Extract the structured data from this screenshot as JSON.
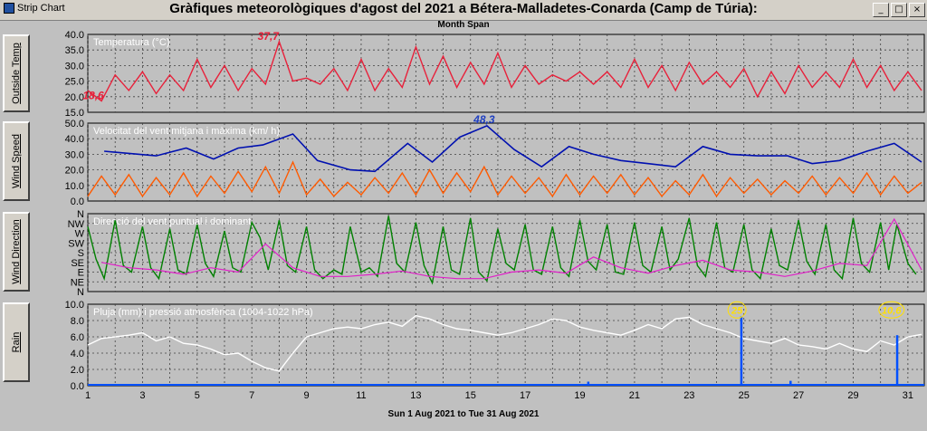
{
  "window": {
    "app_label": "Strip Chart",
    "title": "Gràfiques meteorològiques d'agost del 2021 a Bétera-Malladetes-Conarda (Camp de Túria):",
    "subtitle": "Month Span",
    "footer": "Sun 1 Aug 2021  to  Tue 31 Aug 2021",
    "buttons": {
      "minimize": "_",
      "maximize": "□",
      "close": "×"
    }
  },
  "side_buttons": [
    "Outside Temp",
    "Wind Speed",
    "Wind Direction",
    "Rain"
  ],
  "colors": {
    "temp": "#e8203a",
    "wind_avg": "#ff5a00",
    "wind_max": "#0010b0",
    "dir_point": "#008000",
    "dir_dominant": "#e020c8",
    "rain": "#0050ff",
    "pressure": "#ffffff",
    "rain_marker": "#ffe000",
    "annotation_red": "#e8203a",
    "annotation_blue": "#2040c0",
    "annotation_yellow": "#ffe000"
  },
  "chart_data": [
    {
      "type": "line",
      "panel": "temperature",
      "title": "Temperatura (°C)",
      "ylim": [
        15,
        40
      ],
      "yticks": [
        "40.0",
        "35.0",
        "30.0",
        "25.0",
        "20.0",
        "15.0"
      ],
      "x": [
        1,
        1.5,
        2,
        2.5,
        3,
        3.5,
        4,
        4.5,
        5,
        5.5,
        6,
        6.5,
        7,
        7.5,
        8,
        8.5,
        9,
        9.5,
        10,
        10.5,
        11,
        11.5,
        12,
        12.5,
        13,
        13.5,
        14,
        14.5,
        15,
        15.5,
        16,
        16.5,
        17,
        17.5,
        18,
        18.5,
        19,
        19.5,
        20,
        20.5,
        21,
        21.5,
        22,
        22.5,
        23,
        23.5,
        24,
        24.5,
        25,
        25.5,
        26,
        26.5,
        27,
        27.5,
        28,
        28.5,
        29,
        29.5,
        30,
        30.5,
        31,
        31.5
      ],
      "series": [
        {
          "name": "temperature",
          "values": [
            22,
            18.6,
            27,
            22,
            28,
            21,
            27,
            22,
            32,
            23,
            30,
            22,
            29,
            24,
            37.7,
            25,
            26,
            24,
            29,
            22,
            32,
            22,
            29,
            23,
            36,
            24,
            33,
            23,
            31,
            24,
            34,
            23,
            30,
            24,
            27,
            25,
            28,
            24,
            28,
            23,
            32,
            23,
            30,
            22,
            31,
            24,
            28,
            23,
            29,
            20,
            28,
            21,
            30,
            23,
            28,
            23,
            32,
            23,
            30,
            22,
            28,
            22
          ]
        }
      ],
      "annotations": [
        {
          "text": "37,7",
          "x": 7.6,
          "y": 37.7
        },
        {
          "text": "18,6",
          "x": 1.2,
          "y": 18.6
        }
      ]
    },
    {
      "type": "line",
      "panel": "wind_speed",
      "title": "Velocitat del vent mitjana i màxima (km/ h)",
      "ylim": [
        0,
        50
      ],
      "yticks": [
        "50.0",
        "40.0",
        "30.0",
        "20.0",
        "10.0",
        "0.0"
      ],
      "series": [
        {
          "name": "max",
          "x": [
            1.6,
            3.5,
            4.6,
            5.6,
            6.5,
            7.4,
            8.5,
            9.4,
            10.6,
            11.5,
            12.7,
            13.6,
            14.6,
            15.6,
            16.6,
            17.6,
            18.6,
            19.5,
            20.5,
            21.5,
            22.5,
            23.5,
            24.5,
            25.5,
            26.6,
            27.5,
            28.5,
            29.5,
            30.5,
            31.5
          ],
          "values": [
            32,
            29,
            34,
            27,
            34,
            36,
            43,
            26,
            20,
            19,
            37,
            25,
            41,
            48.3,
            33,
            22,
            35,
            30,
            26,
            24,
            22,
            35,
            30,
            29,
            29,
            24,
            26,
            32,
            37,
            25
          ]
        },
        {
          "name": "average",
          "x": [
            1,
            1.5,
            2,
            2.5,
            3,
            3.5,
            4,
            4.5,
            5,
            5.5,
            6,
            6.5,
            7,
            7.5,
            8,
            8.5,
            9,
            9.5,
            10,
            10.5,
            11,
            11.5,
            12,
            12.5,
            13,
            13.5,
            14,
            14.5,
            15,
            15.5,
            16,
            16.5,
            17,
            17.5,
            18,
            18.5,
            19,
            19.5,
            20,
            20.5,
            21,
            21.5,
            22,
            22.5,
            23,
            23.5,
            24,
            24.5,
            25,
            25.5,
            26,
            26.5,
            27,
            27.5,
            28,
            28.5,
            29,
            29.5,
            30,
            30.5,
            31,
            31.5
          ],
          "values": [
            3,
            16,
            4,
            17,
            3,
            15,
            4,
            18,
            3,
            16,
            5,
            19,
            6,
            22,
            5,
            25,
            4,
            14,
            3,
            12,
            4,
            15,
            5,
            18,
            4,
            20,
            5,
            18,
            6,
            22,
            4,
            16,
            5,
            15,
            3,
            17,
            4,
            16,
            5,
            17,
            4,
            15,
            3,
            13,
            4,
            17,
            3,
            15,
            5,
            14,
            4,
            13,
            5,
            16,
            4,
            15,
            5,
            18,
            4,
            16,
            5,
            12
          ]
        }
      ],
      "annotations": [
        {
          "text": "48,3",
          "x": 15.5,
          "y": 48.3
        }
      ]
    },
    {
      "type": "line",
      "panel": "wind_direction",
      "title": "Direcció del vent puntual i dominant",
      "ylim": [
        0,
        360
      ],
      "yticks": [
        "N",
        "NW",
        "W",
        "SW",
        "S",
        "SE",
        "E",
        "NE",
        "N"
      ],
      "series": [
        {
          "name": "dominant",
          "x": [
            1.5,
            2.5,
            3.5,
            4.5,
            5.5,
            6.5,
            7.5,
            8.5,
            9.5,
            10.5,
            11.5,
            12.5,
            13.5,
            14.5,
            15.5,
            16.5,
            17.5,
            18.5,
            19.5,
            20.5,
            21.5,
            22.5,
            23.5,
            24.5,
            25.5,
            26.5,
            27.5,
            28.5,
            29.5,
            30.5,
            31.5
          ],
          "values": [
            135,
            110,
            100,
            80,
            110,
            90,
            220,
            110,
            70,
            70,
            80,
            95,
            70,
            60,
            60,
            90,
            100,
            85,
            160,
            110,
            85,
            120,
            145,
            100,
            90,
            70,
            95,
            130,
            120,
            335,
            100
          ]
        },
        {
          "name": "point",
          "x": [
            1,
            1.3,
            1.6,
            2,
            2.3,
            2.6,
            3,
            3.3,
            3.6,
            4,
            4.3,
            4.6,
            5,
            5.3,
            5.6,
            6,
            6.3,
            6.6,
            7,
            7.3,
            7.6,
            8,
            8.3,
            8.6,
            9,
            9.3,
            9.6,
            10,
            10.3,
            10.6,
            11,
            11.3,
            11.6,
            12,
            12.3,
            12.6,
            13,
            13.3,
            13.6,
            14,
            14.3,
            14.6,
            15,
            15.3,
            15.6,
            16,
            16.3,
            16.6,
            17,
            17.3,
            17.6,
            18,
            18.3,
            18.6,
            19,
            19.3,
            19.6,
            20,
            20.3,
            20.6,
            21,
            21.3,
            21.6,
            22,
            22.3,
            22.6,
            23,
            23.3,
            23.6,
            24,
            24.3,
            24.6,
            25,
            25.3,
            25.6,
            26,
            26.3,
            26.6,
            27,
            27.3,
            27.6,
            28,
            28.3,
            28.6,
            29,
            29.3,
            29.6,
            30,
            30.3,
            30.6,
            31,
            31.3
          ],
          "values": [
            300,
            150,
            60,
            330,
            120,
            90,
            300,
            110,
            60,
            290,
            100,
            80,
            310,
            130,
            70,
            280,
            110,
            90,
            320,
            250,
            100,
            330,
            120,
            90,
            300,
            100,
            60,
            100,
            80,
            300,
            90,
            110,
            70,
            350,
            130,
            90,
            320,
            120,
            40,
            300,
            100,
            80,
            340,
            90,
            50,
            290,
            130,
            100,
            310,
            100,
            80,
            300,
            110,
            70,
            330,
            140,
            100,
            310,
            90,
            80,
            320,
            120,
            90,
            300,
            100,
            150,
            340,
            120,
            70,
            320,
            110,
            90,
            310,
            100,
            60,
            290,
            120,
            100,
            330,
            140,
            80,
            310,
            100,
            60,
            340,
            130,
            90,
            320,
            100,
            310,
            130,
            80
          ]
        }
      ]
    },
    {
      "type": "line",
      "panel": "rain",
      "title": "Pluja (mm) i pressió atmosfèrica (1004-1022 hPa)",
      "ylim": [
        0,
        10
      ],
      "yticks": [
        "10.0",
        "8.0",
        "6.0",
        "4.0",
        "2.0",
        "0.0"
      ],
      "xticks": [
        "1",
        "3",
        "5",
        "7",
        "9",
        "11",
        "13",
        "15",
        "17",
        "19",
        "21",
        "23",
        "25",
        "27",
        "29",
        "31"
      ],
      "series": [
        {
          "name": "pressure",
          "x": [
            1,
            1.5,
            2,
            2.5,
            3,
            3.5,
            4,
            4.5,
            5,
            5.5,
            6,
            6.5,
            7,
            7.5,
            8,
            8.5,
            9,
            9.5,
            10,
            10.5,
            11,
            11.5,
            12,
            12.5,
            13,
            13.5,
            14,
            14.5,
            15,
            15.5,
            16,
            16.5,
            17,
            17.5,
            18,
            18.5,
            19,
            19.5,
            20,
            20.5,
            21,
            21.5,
            22,
            22.5,
            23,
            23.5,
            24,
            24.5,
            25,
            25.5,
            26,
            26.5,
            27,
            27.5,
            28,
            28.5,
            29,
            29.5,
            30,
            30.5,
            31,
            31.5
          ],
          "values": [
            5,
            5.8,
            6,
            6.2,
            6.5,
            5.5,
            6,
            5.2,
            5,
            4.5,
            3.8,
            4,
            3,
            2.2,
            1.8,
            4,
            6,
            6.5,
            7,
            7.2,
            7,
            7.5,
            7.8,
            7.3,
            8.6,
            8.2,
            7.5,
            7,
            6.8,
            6.5,
            6.2,
            6.5,
            7,
            7.5,
            8.2,
            8,
            7.2,
            6.8,
            6.5,
            6.2,
            6.8,
            7.5,
            7,
            8.2,
            8.4,
            7.5,
            7,
            6.5,
            5.8,
            5.5,
            5.2,
            5.8,
            5,
            4.8,
            4.5,
            5.2,
            4.5,
            4.2,
            5.5,
            5,
            6,
            6.3
          ]
        },
        {
          "name": "rain",
          "x": [
            19.3,
            24.9,
            26.7,
            30.6
          ],
          "values": [
            0.5,
            8.5,
            0.6,
            6.2
          ]
        }
      ],
      "annotations": [
        {
          "text": "25",
          "x": 24.75,
          "y": 9.3
        },
        {
          "text": "10,6",
          "x": 30.4,
          "y": 9.3
        }
      ]
    }
  ]
}
